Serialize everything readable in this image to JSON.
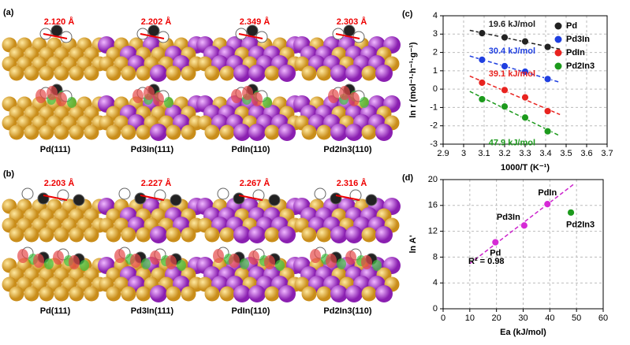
{
  "panels": [
    {
      "label": "(a)",
      "items": [
        {
          "distance": "2.120 Å",
          "surface": "Pd(111)"
        },
        {
          "distance": "2.202 Å",
          "surface": "Pd3In(111)"
        },
        {
          "distance": "2.349 Å",
          "surface": "PdIn(110)"
        },
        {
          "distance": "2.303 Å",
          "surface": "Pd2In3(110)"
        }
      ]
    },
    {
      "label": "(b)",
      "items": [
        {
          "distance": "2.203 Å",
          "surface": "Pd(111)"
        },
        {
          "distance": "2.227 Å",
          "surface": "Pd3In(111)"
        },
        {
          "distance": "2.267 Å",
          "surface": "PdIn(110)"
        },
        {
          "distance": "2.316 Å",
          "surface": "Pd2In3(110)"
        }
      ]
    }
  ],
  "chart_data": [
    {
      "type": "scatter",
      "panel": "(c)",
      "xlabel": "1000/T (K⁻¹)",
      "ylabel": "ln r (mol⁻¹·h⁻¹·g⁻¹)",
      "x": [
        3.09,
        3.2,
        3.3,
        3.41
      ],
      "series": [
        {
          "name": "Pd",
          "color": "#222222",
          "annotation": "19.6 kJ/mol",
          "values": [
            3.05,
            2.82,
            2.6,
            2.3
          ]
        },
        {
          "name": "Pd3In",
          "color": "#1f3fe0",
          "annotation": "30.4 kJ/mol",
          "values": [
            1.6,
            1.25,
            0.95,
            0.55
          ]
        },
        {
          "name": "PdIn",
          "color": "#e8231f",
          "annotation": "39.1 kJ/mol",
          "values": [
            0.35,
            -0.05,
            -0.45,
            -1.2
          ]
        },
        {
          "name": "Pd2In3",
          "color": "#1c9a1c",
          "annotation": "47.9 kJ/mol",
          "values": [
            -0.55,
            -0.95,
            -1.55,
            -2.3
          ]
        }
      ],
      "xlim": [
        2.9,
        3.7
      ],
      "xticks": [
        2.9,
        3,
        3.1,
        3.2,
        3.3,
        3.4,
        3.5,
        3.6,
        3.7
      ],
      "ylim": [
        -3,
        4
      ],
      "yticks": [
        -3,
        -2,
        -1,
        0,
        1,
        2,
        3,
        4
      ],
      "grid": true,
      "legend": "top-right"
    },
    {
      "type": "scatter",
      "panel": "(d)",
      "xlabel": "Ea (kJ/mol)",
      "ylabel": "ln A'",
      "x": [
        19.6,
        30.4,
        39.1,
        47.9
      ],
      "values": [
        10.3,
        12.9,
        16.2,
        14.9
      ],
      "labels": [
        "Pd",
        "Pd3In",
        "PdIn",
        "Pd2In3"
      ],
      "colors": [
        "#d62ad6",
        "#d62ad6",
        "#d62ad6",
        "#1c9a1c"
      ],
      "fit": {
        "x": [
          10,
          49
        ],
        "values": [
          7.0,
          19.3
        ],
        "color": "#cc22cc"
      },
      "annotation": "R² = 0.98",
      "xlim": [
        0,
        60
      ],
      "xticks": [
        0,
        10,
        20,
        30,
        40,
        50,
        60
      ],
      "ylim": [
        0,
        20
      ],
      "yticks": [
        0,
        4,
        8,
        12,
        16,
        20
      ],
      "grid": true
    }
  ]
}
